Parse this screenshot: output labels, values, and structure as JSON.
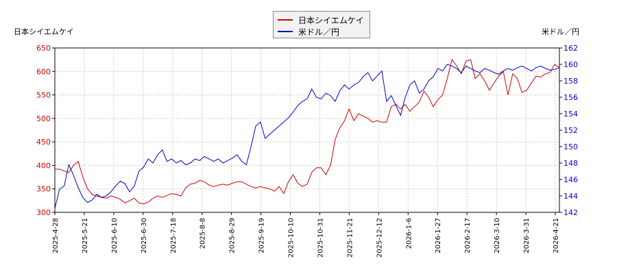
{
  "chart_data": {
    "type": "line",
    "left_axis_title": "日本シイエムケイ",
    "right_axis_title": "米ドル／円",
    "left_ylim": [
      300,
      650
    ],
    "left_yticks": [
      300,
      350,
      400,
      450,
      500,
      550,
      600,
      650
    ],
    "right_ylim": [
      142,
      162
    ],
    "right_yticks": [
      142,
      144,
      146,
      148,
      150,
      152,
      154,
      156,
      158,
      160,
      162
    ],
    "x_ticks": [
      "2025-4-28",
      "2025-5-21",
      "2025-6-10",
      "2025-6-30",
      "2025-7-18",
      "2025-8-8",
      "2025-8-29",
      "2025-9-19",
      "2025-10-10",
      "2025-10-31",
      "2025-11-21",
      "2025-12-12",
      "2026-1-6",
      "2026-1-27",
      "2026-2-17",
      "2026-3-10",
      "2026-3-31",
      "2026-4-21"
    ],
    "grid": true,
    "legend_position": "top-center",
    "series": [
      {
        "name": "日本シイエムケイ",
        "color": "#cc0000",
        "axis": "left",
        "values": [
          392,
          392,
          388,
          385,
          400,
          408,
          375,
          350,
          338,
          335,
          332,
          330,
          335,
          332,
          328,
          320,
          325,
          330,
          320,
          318,
          322,
          330,
          335,
          332,
          336,
          340,
          338,
          335,
          352,
          360,
          362,
          368,
          365,
          358,
          355,
          358,
          360,
          358,
          362,
          365,
          365,
          360,
          355,
          352,
          355,
          352,
          350,
          345,
          355,
          340,
          365,
          380,
          362,
          355,
          360,
          385,
          395,
          395,
          380,
          400,
          455,
          480,
          495,
          520,
          495,
          510,
          505,
          500,
          492,
          495,
          492,
          492,
          525,
          530,
          520,
          530,
          515,
          525,
          535,
          558,
          545,
          525,
          540,
          550,
          585,
          625,
          612,
          595,
          622,
          625,
          585,
          595,
          580,
          560,
          575,
          590,
          600,
          550,
          595,
          585,
          555,
          560,
          575,
          590,
          588,
          595,
          598,
          615,
          608
        ]
      },
      {
        "name": "米ドル／円",
        "color": "#0000cc",
        "axis": "right",
        "values": [
          142.5,
          144.8,
          145.2,
          147.8,
          146.5,
          145.0,
          143.8,
          143.2,
          143.5,
          144.2,
          143.8,
          144.0,
          144.5,
          145.2,
          145.8,
          145.5,
          144.5,
          145.2,
          147.0,
          147.5,
          148.5,
          148.0,
          149.0,
          149.6,
          148.2,
          148.5,
          148.0,
          148.3,
          147.8,
          148.0,
          148.5,
          148.3,
          148.8,
          148.5,
          148.2,
          148.5,
          148.0,
          148.3,
          148.6,
          149.0,
          148.2,
          147.8,
          150.0,
          152.5,
          153.0,
          151.0,
          151.5,
          152.0,
          152.5,
          153.0,
          153.5,
          154.2,
          155.0,
          155.5,
          155.8,
          157.0,
          156.0,
          155.8,
          156.5,
          156.2,
          155.5,
          156.8,
          157.5,
          157.0,
          157.5,
          157.8,
          158.5,
          159.0,
          158.0,
          158.6,
          159.2,
          155.5,
          156.2,
          155.0,
          153.8,
          156.0,
          157.5,
          158.0,
          156.5,
          157.0,
          158.0,
          158.5,
          159.5,
          159.2,
          160.0,
          159.8,
          159.5,
          159.0,
          159.8,
          159.5,
          159.2,
          159.0,
          159.5,
          159.3,
          159.0,
          158.8,
          159.2,
          159.5,
          159.3,
          159.6,
          159.8,
          159.5,
          159.2,
          159.6,
          159.8,
          159.5,
          159.3,
          159.4,
          159.6
        ]
      }
    ]
  }
}
